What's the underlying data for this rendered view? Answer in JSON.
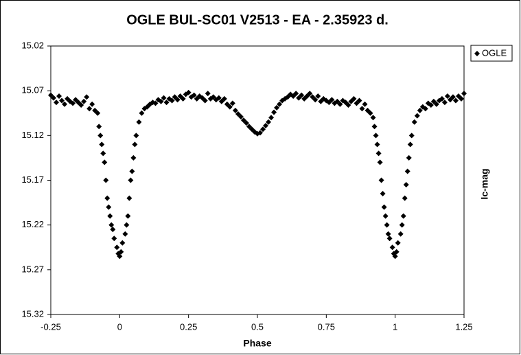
{
  "chart_data": {
    "type": "scatter",
    "title": "OGLE BUL-SC01 V2513 - EA - 2.35923 d.",
    "x_label": "Phase",
    "y_label": "Ic-mag",
    "xlim": [
      -0.25,
      1.25
    ],
    "xticks": [
      -0.25,
      0,
      0.25,
      0.5,
      0.75,
      1,
      1.25
    ],
    "ylim": [
      15.02,
      15.32
    ],
    "yticks": [
      15.02,
      15.07,
      15.12,
      15.17,
      15.22,
      15.27,
      15.32
    ],
    "y_reversed": true,
    "grid": false,
    "legend": "right",
    "series": [
      {
        "name": "OGLE",
        "color": "#000000",
        "x": [
          -0.25,
          -0.24,
          -0.23,
          -0.22,
          -0.21,
          -0.2,
          -0.19,
          -0.18,
          -0.17,
          -0.16,
          -0.15,
          -0.14,
          -0.13,
          -0.12,
          -0.11,
          -0.1,
          -0.09,
          -0.08,
          -0.075,
          -0.07,
          -0.065,
          -0.06,
          -0.055,
          -0.05,
          -0.045,
          -0.04,
          -0.035,
          -0.03,
          -0.025,
          -0.02,
          -0.01,
          -0.005,
          0,
          0.005,
          0.01,
          0.02,
          0.025,
          0.03,
          0.035,
          0.04,
          0.045,
          0.05,
          0.055,
          0.06,
          0.07,
          0.08,
          0.09,
          0.1,
          0.11,
          0.12,
          0.13,
          0.14,
          0.15,
          0.16,
          0.17,
          0.18,
          0.19,
          0.2,
          0.21,
          0.22,
          0.23,
          0.24,
          0.25,
          0.26,
          0.27,
          0.28,
          0.29,
          0.3,
          0.31,
          0.32,
          0.33,
          0.34,
          0.35,
          0.36,
          0.37,
          0.38,
          0.39,
          0.4,
          0.41,
          0.42,
          0.43,
          0.44,
          0.45,
          0.46,
          0.47,
          0.48,
          0.49,
          0.5,
          0.51,
          0.52,
          0.53,
          0.54,
          0.55,
          0.56,
          0.57,
          0.58,
          0.59,
          0.6,
          0.61,
          0.62,
          0.63,
          0.64,
          0.65,
          0.66,
          0.67,
          0.68,
          0.69,
          0.7,
          0.71,
          0.72,
          0.73,
          0.74,
          0.75,
          0.76,
          0.77,
          0.78,
          0.79,
          0.8,
          0.81,
          0.82,
          0.83,
          0.84,
          0.85,
          0.86,
          0.87,
          0.88,
          0.89,
          0.9,
          0.91,
          0.92,
          0.925,
          0.93,
          0.935,
          0.94,
          0.945,
          0.95,
          0.955,
          0.96,
          0.965,
          0.97,
          0.975,
          0.98,
          0.99,
          0.995,
          1,
          1.005,
          1.01,
          1.02,
          1.025,
          1.03,
          1.035,
          1.04,
          1.045,
          1.05,
          1.055,
          1.06,
          1.07,
          1.08,
          1.09,
          1.1,
          1.11,
          1.12,
          1.13,
          1.14,
          1.15,
          1.16,
          1.17,
          1.18,
          1.19,
          1.2,
          1.21,
          1.22,
          1.23,
          1.24,
          1.25
        ],
        "values": [
          15.075,
          15.078,
          15.083,
          15.076,
          15.081,
          15.085,
          15.079,
          15.082,
          15.084,
          15.08,
          15.083,
          15.086,
          15.082,
          15.077,
          15.09,
          15.085,
          15.092,
          15.095,
          15.11,
          15.12,
          15.13,
          15.14,
          15.15,
          15.17,
          15.19,
          15.2,
          15.21,
          15.22,
          15.225,
          15.235,
          15.245,
          15.252,
          15.255,
          15.25,
          15.24,
          15.23,
          15.22,
          15.21,
          15.19,
          15.17,
          15.16,
          15.145,
          15.13,
          15.12,
          15.105,
          15.095,
          15.09,
          15.088,
          15.085,
          15.083,
          15.084,
          15.08,
          15.082,
          15.078,
          15.083,
          15.079,
          15.081,
          15.077,
          15.08,
          15.076,
          15.079,
          15.074,
          15.072,
          15.077,
          15.075,
          15.079,
          15.076,
          15.078,
          15.081,
          15.073,
          15.079,
          15.077,
          15.08,
          15.078,
          15.082,
          15.079,
          15.085,
          15.088,
          15.084,
          15.092,
          15.096,
          15.099,
          15.103,
          15.106,
          15.11,
          15.113,
          15.116,
          15.118,
          15.117,
          15.113,
          15.109,
          15.105,
          15.1,
          15.094,
          15.089,
          15.085,
          15.081,
          15.079,
          15.077,
          15.074,
          15.076,
          15.073,
          15.078,
          15.075,
          15.079,
          15.076,
          15.073,
          15.077,
          15.08,
          15.076,
          15.082,
          15.079,
          15.081,
          15.083,
          15.08,
          15.084,
          15.082,
          15.085,
          15.081,
          15.083,
          15.086,
          15.082,
          15.079,
          15.084,
          15.081,
          15.09,
          15.085,
          15.092,
          15.095,
          15.1,
          15.11,
          15.12,
          15.13,
          15.14,
          15.15,
          15.17,
          15.185,
          15.2,
          15.21,
          15.22,
          15.23,
          15.235,
          15.245,
          15.252,
          15.255,
          15.25,
          15.24,
          15.23,
          15.22,
          15.21,
          15.19,
          15.175,
          15.16,
          15.145,
          15.13,
          15.12,
          15.105,
          15.098,
          15.092,
          15.088,
          15.09,
          15.084,
          15.086,
          15.082,
          15.085,
          15.081,
          15.079,
          15.083,
          15.076,
          15.08,
          15.077,
          15.081,
          15.076,
          15.079,
          15.073
        ]
      }
    ]
  }
}
